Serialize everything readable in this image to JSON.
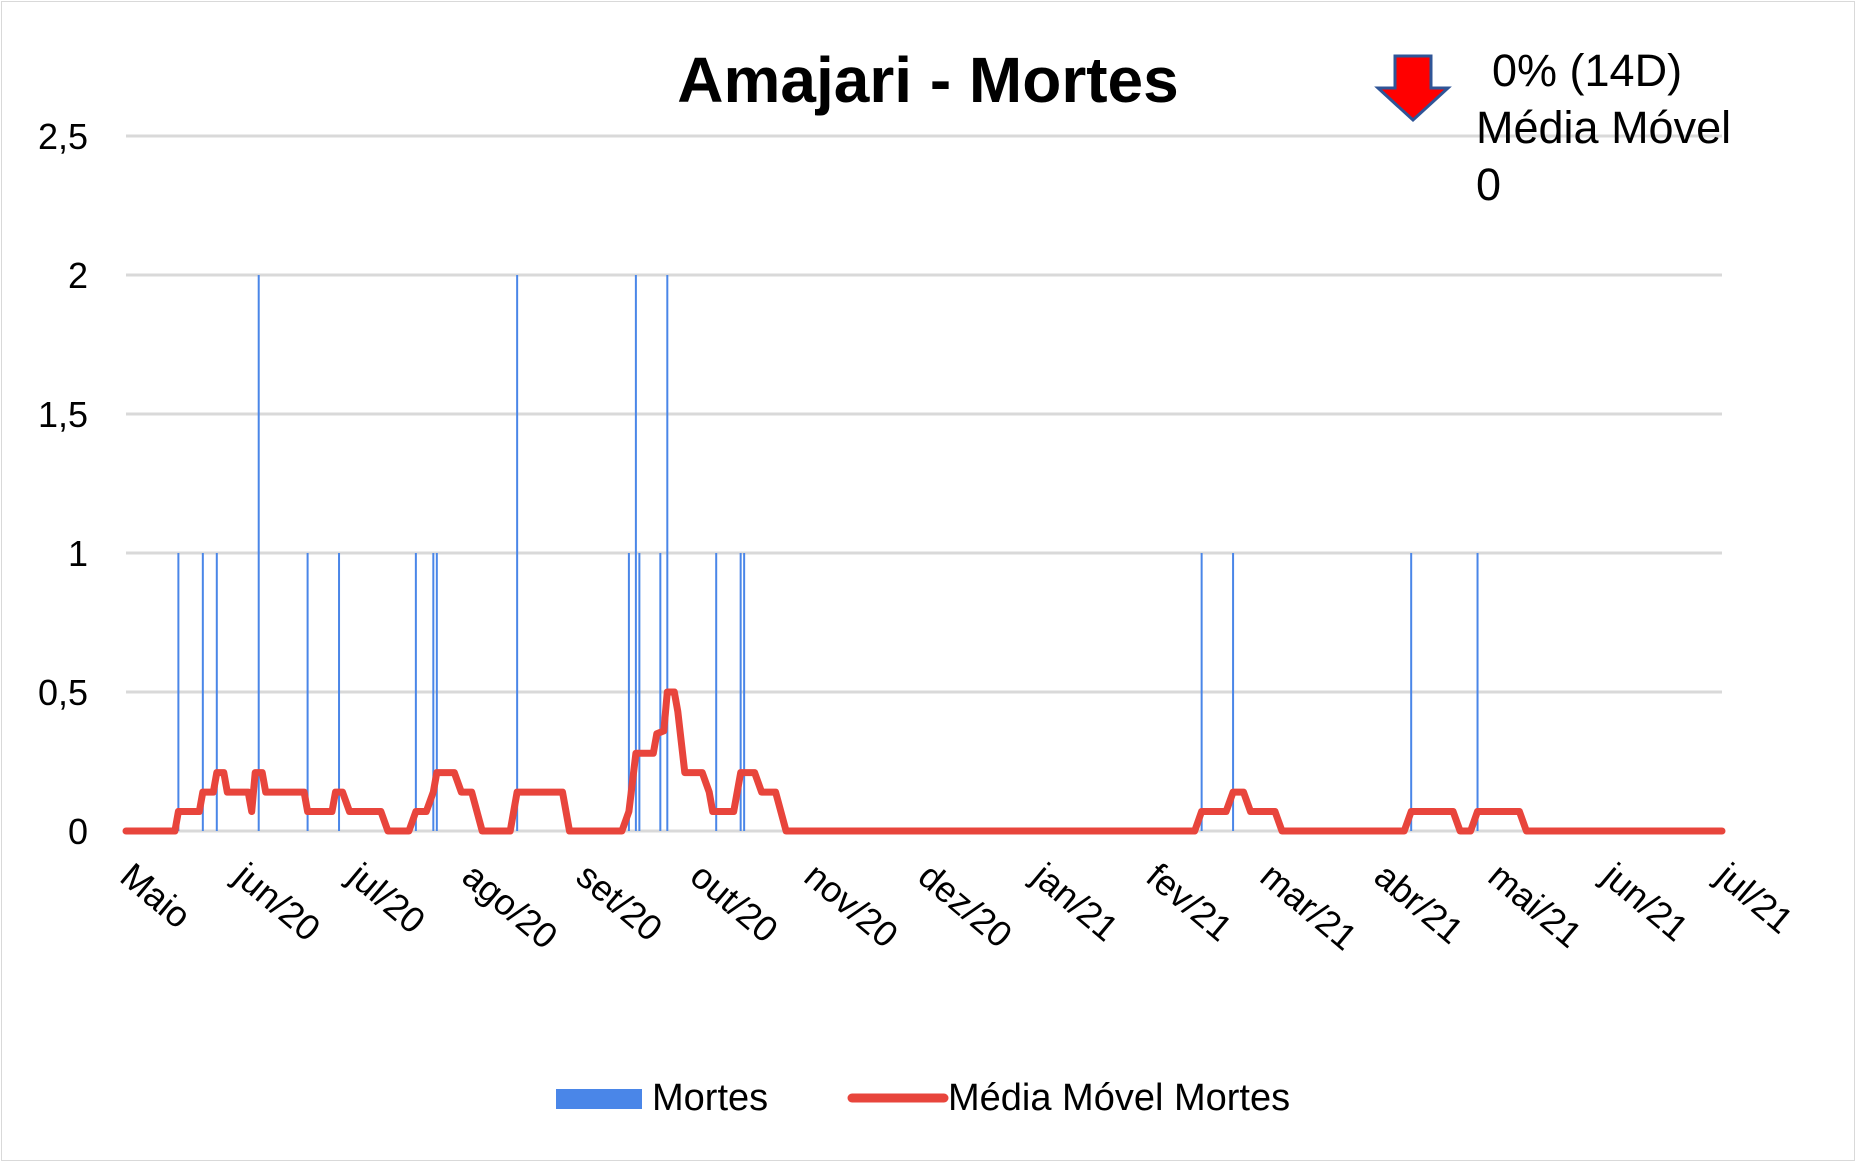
{
  "chart_data": {
    "type": "bar+line",
    "title": "Amajari - Mortes",
    "ylim": [
      0,
      2.5
    ],
    "y_ticks": [
      "0",
      "0,5",
      "1",
      "1,5",
      "2",
      "2,5"
    ],
    "x_ticks": [
      "Maio",
      "jun/20",
      "jul/20",
      "ago/20",
      "set/20",
      "out/20",
      "nov/20",
      "dez/20",
      "jan/21",
      "fev/21",
      "mar/21",
      "abr/21",
      "mai/21",
      "jun/21",
      "jul/21"
    ],
    "x_range_days": [
      0,
      457
    ],
    "grid": true,
    "legend_position": "bottom",
    "series": [
      {
        "name": "Mortes",
        "type": "bar",
        "color": "#4a86e8",
        "points": [
          {
            "day": 15,
            "value": 1
          },
          {
            "day": 22,
            "value": 1
          },
          {
            "day": 26,
            "value": 1
          },
          {
            "day": 38,
            "value": 2
          },
          {
            "day": 52,
            "value": 1
          },
          {
            "day": 61,
            "value": 1
          },
          {
            "day": 83,
            "value": 1
          },
          {
            "day": 88,
            "value": 1
          },
          {
            "day": 89,
            "value": 1
          },
          {
            "day": 112,
            "value": 2
          },
          {
            "day": 144,
            "value": 1
          },
          {
            "day": 146,
            "value": 2
          },
          {
            "day": 147,
            "value": 1
          },
          {
            "day": 153,
            "value": 1
          },
          {
            "day": 155,
            "value": 2
          },
          {
            "day": 169,
            "value": 1
          },
          {
            "day": 176,
            "value": 1
          },
          {
            "day": 177,
            "value": 1
          },
          {
            "day": 308,
            "value": 1
          },
          {
            "day": 317,
            "value": 1
          },
          {
            "day": 368,
            "value": 1
          },
          {
            "day": 387,
            "value": 1
          }
        ]
      },
      {
        "name": "Média Móvel Mortes",
        "type": "line",
        "color": "#e8453c",
        "points": [
          [
            0,
            0
          ],
          [
            14,
            0
          ],
          [
            15,
            0.07
          ],
          [
            21,
            0.07
          ],
          [
            22,
            0.14
          ],
          [
            25,
            0.14
          ],
          [
            26,
            0.21
          ],
          [
            28,
            0.21
          ],
          [
            29,
            0.14
          ],
          [
            35,
            0.14
          ],
          [
            36,
            0.07
          ],
          [
            37,
            0.21
          ],
          [
            39,
            0.21
          ],
          [
            40,
            0.14
          ],
          [
            51,
            0.14
          ],
          [
            52,
            0.07
          ],
          [
            59,
            0.07
          ],
          [
            60,
            0.14
          ],
          [
            62,
            0.14
          ],
          [
            64,
            0.07
          ],
          [
            73,
            0.07
          ],
          [
            75,
            0
          ],
          [
            81,
            0
          ],
          [
            83,
            0.07
          ],
          [
            86,
            0.07
          ],
          [
            88,
            0.14
          ],
          [
            89,
            0.21
          ],
          [
            94,
            0.21
          ],
          [
            96,
            0.14
          ],
          [
            99,
            0.14
          ],
          [
            102,
            0
          ],
          [
            110,
            0
          ],
          [
            112,
            0.14
          ],
          [
            125,
            0.14
          ],
          [
            127,
            0
          ],
          [
            142,
            0
          ],
          [
            144,
            0.07
          ],
          [
            146,
            0.28
          ],
          [
            151,
            0.28
          ],
          [
            152,
            0.35
          ],
          [
            154,
            0.36
          ],
          [
            155,
            0.5
          ],
          [
            157,
            0.5
          ],
          [
            158,
            0.43
          ],
          [
            160,
            0.21
          ],
          [
            165,
            0.21
          ],
          [
            167,
            0.14
          ],
          [
            168,
            0.07
          ],
          [
            174,
            0.07
          ],
          [
            176,
            0.21
          ],
          [
            180,
            0.21
          ],
          [
            182,
            0.14
          ],
          [
            186,
            0.14
          ],
          [
            189,
            0
          ],
          [
            306,
            0
          ],
          [
            308,
            0.07
          ],
          [
            315,
            0.07
          ],
          [
            317,
            0.14
          ],
          [
            320,
            0.14
          ],
          [
            322,
            0.07
          ],
          [
            329,
            0.07
          ],
          [
            331,
            0
          ],
          [
            366,
            0
          ],
          [
            368,
            0.07
          ],
          [
            380,
            0.07
          ],
          [
            382,
            0
          ],
          [
            385,
            0
          ],
          [
            387,
            0.07
          ],
          [
            399,
            0.07
          ],
          [
            401,
            0
          ],
          [
            457,
            0
          ]
        ]
      }
    ],
    "annotation": {
      "change": "0% (14D)",
      "label": "Média Móvel",
      "value": "0",
      "arrow_color": "#ff0000",
      "arrow_border": "#2f5597"
    }
  }
}
